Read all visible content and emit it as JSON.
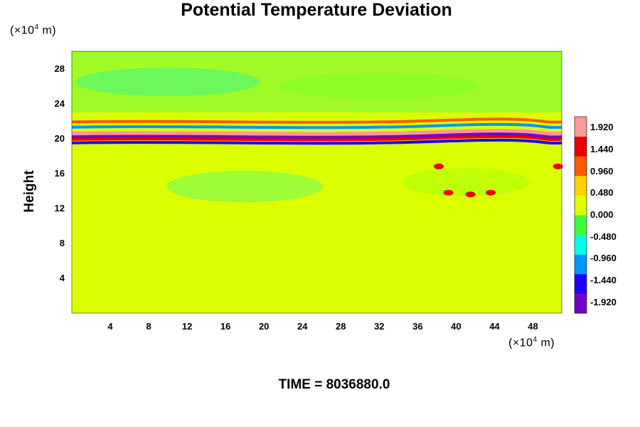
{
  "chart_data": {
    "type": "heatmap",
    "title": "Potential Temperature Deviation",
    "ylabel": "Height",
    "xlabel": "",
    "x_unit": {
      "prefix": "(×10",
      "exp": "4",
      "suffix": " m)"
    },
    "y_unit": {
      "prefix": "(×10",
      "exp": "4",
      "suffix": " m)"
    },
    "xlim": [
      0,
      51
    ],
    "ylim": [
      0,
      30
    ],
    "xticks": [
      "4",
      "8",
      "12",
      "16",
      "20",
      "24",
      "28",
      "32",
      "36",
      "40",
      "44",
      "48"
    ],
    "yticks": [
      "4",
      "8",
      "12",
      "16",
      "20",
      "24",
      "28"
    ],
    "xtick_values": [
      4,
      8,
      12,
      16,
      20,
      24,
      28,
      32,
      36,
      40,
      44,
      48
    ],
    "ytick_values": [
      4,
      8,
      12,
      16,
      20,
      24,
      28
    ],
    "colorbar": {
      "min": -2.16,
      "max": 2.16,
      "labels": [
        "1.920",
        "1.440",
        "0.960",
        "0.480",
        "0.000",
        "-0.480",
        "-0.960",
        "-1.440",
        "-1.920"
      ],
      "label_values": [
        1.92,
        1.44,
        0.96,
        0.48,
        0.0,
        -0.48,
        -0.96,
        -1.44,
        -1.92
      ],
      "colors": [
        "#7a00c8",
        "#1e00ff",
        "#0096ff",
        "#00ffe6",
        "#3cff3c",
        "#dcff00",
        "#ffd200",
        "#ff5a00",
        "#e60000",
        "#ff9898"
      ]
    },
    "background_value": 0.0,
    "bands": [
      {
        "y": 20.5,
        "value": 2.2
      },
      {
        "y": 19.9,
        "value": 1.7
      },
      {
        "y": 20.2,
        "value": -2.0
      },
      {
        "y": 21.3,
        "value": -1.2
      },
      {
        "y": 19.5,
        "value": -1.4
      },
      {
        "y": 21.9,
        "value": 0.9
      }
    ],
    "annotation_time": "TIME = 8036880.0"
  },
  "colors": {
    "background": "#ffffff",
    "field": "#3cff3c"
  }
}
